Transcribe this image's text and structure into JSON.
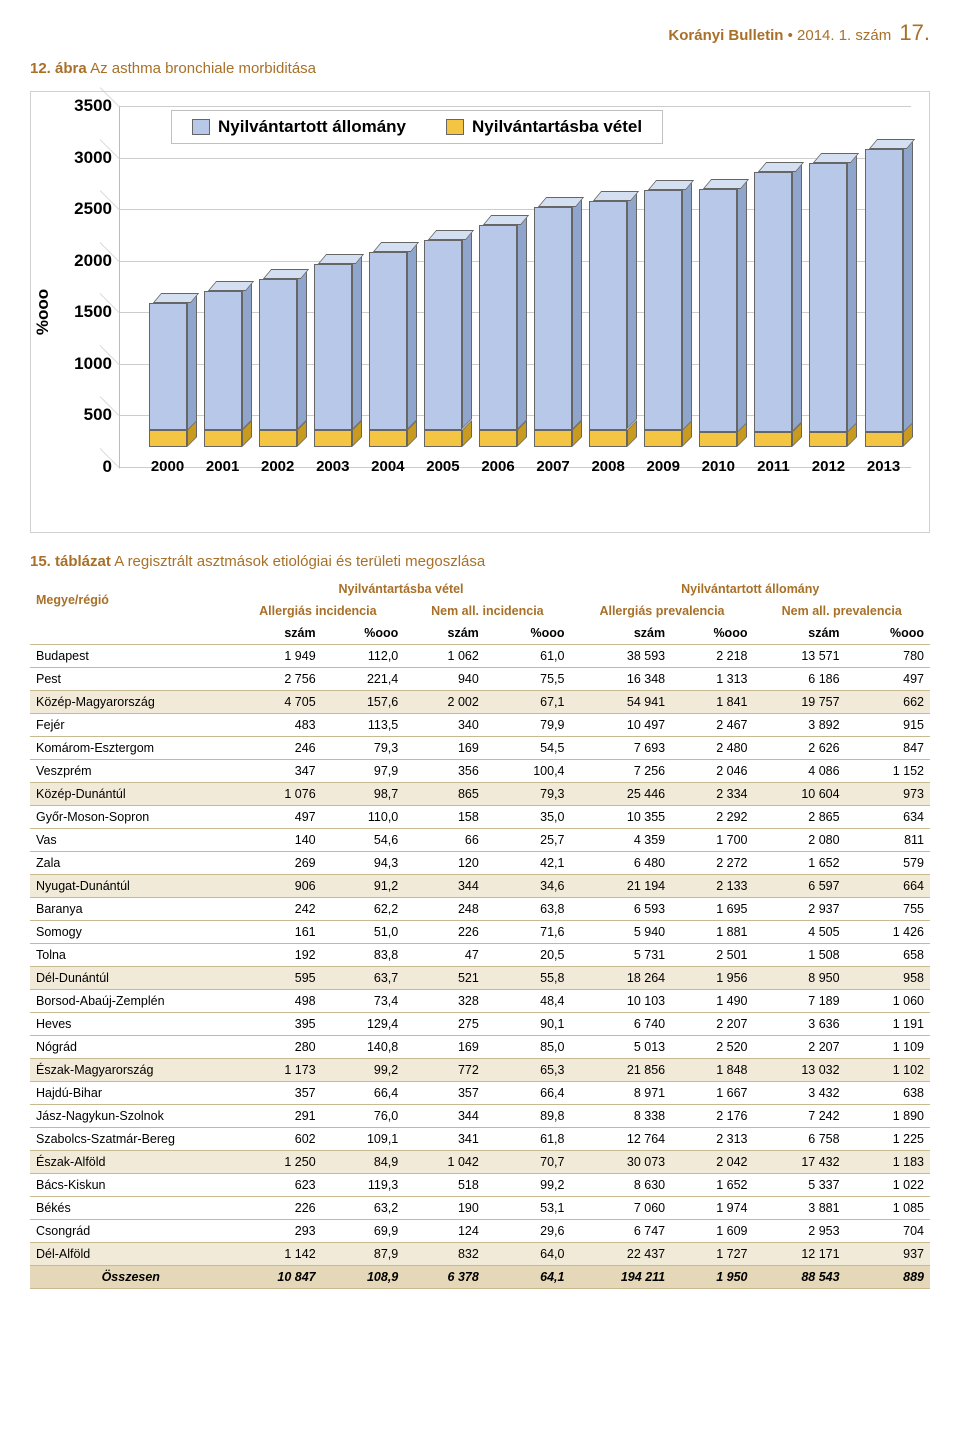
{
  "header": {
    "journal_bold": "Korányi Bulletin",
    "journal_rest": " • 2014. 1. szám",
    "page_number": "17."
  },
  "figure": {
    "number": "12. ábra",
    "title": "Az asthma bronchiale morbiditása",
    "legend_series1": "Nyilvántartott állomány",
    "legend_series2": "Nyilvántartásba vétel",
    "y_axis_label": "%ooo",
    "y_ticks": [
      "0",
      "500",
      "1000",
      "1500",
      "2000",
      "2500",
      "3000",
      "3500"
    ],
    "chart": {
      "type": "bar-3d-grouped",
      "ylim": [
        0,
        3500
      ],
      "colors": {
        "series1_front": "#b8c8e8",
        "series1_top": "#d4dff2",
        "series1_side": "#8fa5cc",
        "series2_front": "#f4c542",
        "series2_top": "#f9de8a",
        "series2_side": "#c99a20",
        "grid": "#cccccc",
        "border": "#666666",
        "background": "#ffffff"
      },
      "categories": [
        "2000",
        "2001",
        "2002",
        "2003",
        "2004",
        "2005",
        "2006",
        "2007",
        "2008",
        "2009",
        "2010",
        "2011",
        "2012",
        "2013"
      ],
      "series1_values": [
        1480,
        1600,
        1720,
        1880,
        2000,
        2120,
        2280,
        2460,
        2520,
        2640,
        2650,
        2820,
        2920,
        3060
      ],
      "series2_values": [
        170,
        170,
        170,
        175,
        175,
        175,
        175,
        175,
        175,
        170,
        150,
        150,
        150,
        150
      ]
    }
  },
  "table": {
    "number": "15. táblázat",
    "title": "A regisztrált asztmások etiológiai és területi megoszlása",
    "group_headers": {
      "col0": "Megye/régió",
      "grp1": "Nyilvántartásba vétel",
      "grp2": "Nyilvántartott állomány"
    },
    "sub_headers": {
      "a": "Allergiás incidencia",
      "b": "Nem all. incidencia",
      "c": "Allergiás prevalencia",
      "d": "Nem all. prevalencia"
    },
    "unit_headers": [
      "szám",
      "%ooo",
      "szám",
      "%ooo",
      "szám",
      "%ooo",
      "szám",
      "%ooo"
    ],
    "rows": [
      {
        "name": "Budapest",
        "v": [
          "1 949",
          "112,0",
          "1 062",
          "61,0",
          "38 593",
          "2 218",
          "13 571",
          "780"
        ]
      },
      {
        "name": "Pest",
        "v": [
          "2 756",
          "221,4",
          "940",
          "75,5",
          "16 348",
          "1 313",
          "6 186",
          "497"
        ]
      },
      {
        "name": "Közép-Magyarország",
        "region": true,
        "v": [
          "4 705",
          "157,6",
          "2 002",
          "67,1",
          "54 941",
          "1 841",
          "19 757",
          "662"
        ]
      },
      {
        "name": "Fejér",
        "v": [
          "483",
          "113,5",
          "340",
          "79,9",
          "10 497",
          "2 467",
          "3 892",
          "915"
        ]
      },
      {
        "name": "Komárom-Esztergom",
        "v": [
          "246",
          "79,3",
          "169",
          "54,5",
          "7 693",
          "2 480",
          "2 626",
          "847"
        ]
      },
      {
        "name": "Veszprém",
        "v": [
          "347",
          "97,9",
          "356",
          "100,4",
          "7 256",
          "2 046",
          "4 086",
          "1 152"
        ]
      },
      {
        "name": "Közép-Dunántúl",
        "region": true,
        "v": [
          "1 076",
          "98,7",
          "865",
          "79,3",
          "25 446",
          "2 334",
          "10 604",
          "973"
        ]
      },
      {
        "name": "Győr-Moson-Sopron",
        "v": [
          "497",
          "110,0",
          "158",
          "35,0",
          "10 355",
          "2 292",
          "2 865",
          "634"
        ]
      },
      {
        "name": "Vas",
        "v": [
          "140",
          "54,6",
          "66",
          "25,7",
          "4 359",
          "1 700",
          "2 080",
          "811"
        ]
      },
      {
        "name": "Zala",
        "v": [
          "269",
          "94,3",
          "120",
          "42,1",
          "6 480",
          "2 272",
          "1 652",
          "579"
        ]
      },
      {
        "name": "Nyugat-Dunántúl",
        "region": true,
        "v": [
          "906",
          "91,2",
          "344",
          "34,6",
          "21 194",
          "2 133",
          "6 597",
          "664"
        ]
      },
      {
        "name": "Baranya",
        "v": [
          "242",
          "62,2",
          "248",
          "63,8",
          "6 593",
          "1 695",
          "2 937",
          "755"
        ]
      },
      {
        "name": "Somogy",
        "v": [
          "161",
          "51,0",
          "226",
          "71,6",
          "5 940",
          "1 881",
          "4 505",
          "1 426"
        ]
      },
      {
        "name": "Tolna",
        "v": [
          "192",
          "83,8",
          "47",
          "20,5",
          "5 731",
          "2 501",
          "1 508",
          "658"
        ]
      },
      {
        "name": "Dél-Dunántúl",
        "region": true,
        "v": [
          "595",
          "63,7",
          "521",
          "55,8",
          "18 264",
          "1 956",
          "8 950",
          "958"
        ]
      },
      {
        "name": "Borsod-Abaúj-Zemplén",
        "v": [
          "498",
          "73,4",
          "328",
          "48,4",
          "10 103",
          "1 490",
          "7 189",
          "1 060"
        ]
      },
      {
        "name": "Heves",
        "v": [
          "395",
          "129,4",
          "275",
          "90,1",
          "6 740",
          "2 207",
          "3 636",
          "1 191"
        ]
      },
      {
        "name": "Nógrád",
        "v": [
          "280",
          "140,8",
          "169",
          "85,0",
          "5 013",
          "2 520",
          "2 207",
          "1 109"
        ]
      },
      {
        "name": "Észak-Magyarország",
        "region": true,
        "v": [
          "1 173",
          "99,2",
          "772",
          "65,3",
          "21 856",
          "1 848",
          "13 032",
          "1 102"
        ]
      },
      {
        "name": "Hajdú-Bihar",
        "v": [
          "357",
          "66,4",
          "357",
          "66,4",
          "8 971",
          "1 667",
          "3 432",
          "638"
        ]
      },
      {
        "name": "Jász-Nagykun-Szolnok",
        "v": [
          "291",
          "76,0",
          "344",
          "89,8",
          "8 338",
          "2 176",
          "7 242",
          "1 890"
        ]
      },
      {
        "name": "Szabolcs-Szatmár-Bereg",
        "v": [
          "602",
          "109,1",
          "341",
          "61,8",
          "12 764",
          "2 313",
          "6 758",
          "1 225"
        ]
      },
      {
        "name": "Észak-Alföld",
        "region": true,
        "v": [
          "1 250",
          "84,9",
          "1 042",
          "70,7",
          "30 073",
          "2 042",
          "17 432",
          "1 183"
        ]
      },
      {
        "name": "Bács-Kiskun",
        "v": [
          "623",
          "119,3",
          "518",
          "99,2",
          "8 630",
          "1 652",
          "5 337",
          "1 022"
        ]
      },
      {
        "name": "Békés",
        "v": [
          "226",
          "63,2",
          "190",
          "53,1",
          "7 060",
          "1 974",
          "3 881",
          "1 085"
        ]
      },
      {
        "name": "Csongrád",
        "v": [
          "293",
          "69,9",
          "124",
          "29,6",
          "6 747",
          "1 609",
          "2 953",
          "704"
        ]
      },
      {
        "name": "Dél-Alföld",
        "region": true,
        "v": [
          "1 142",
          "87,9",
          "832",
          "64,0",
          "22 437",
          "1 727",
          "12 171",
          "937"
        ]
      }
    ],
    "total": {
      "name": "Összesen",
      "v": [
        "10 847",
        "108,9",
        "6 378",
        "64,1",
        "194 211",
        "1 950",
        "88 543",
        "889"
      ]
    }
  }
}
